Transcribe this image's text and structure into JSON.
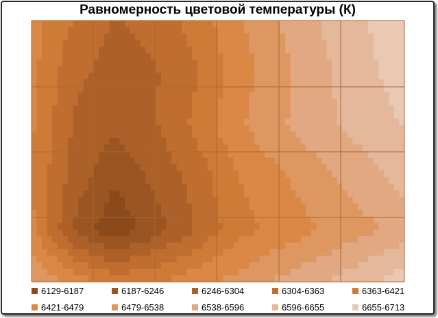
{
  "chart_data": {
    "type": "contour",
    "title": "Равномерность цветовой температуры (К)",
    "grid": true,
    "legend_position": "bottom",
    "bins": [
      {
        "label": "6129-6187",
        "low": 6129,
        "high": 6187,
        "color": "#8a4a1c"
      },
      {
        "label": "6187-6246",
        "low": 6187,
        "high": 6246,
        "color": "#9a5522"
      },
      {
        "label": "6246-6304",
        "low": 6246,
        "high": 6304,
        "color": "#ad6128"
      },
      {
        "label": "6304-6363",
        "low": 6304,
        "high": 6363,
        "color": "#bf6e30"
      },
      {
        "label": "6363-6421",
        "low": 6363,
        "high": 6421,
        "color": "#cf7b38"
      },
      {
        "label": "6421-6479",
        "low": 6421,
        "high": 6479,
        "color": "#db8745"
      },
      {
        "label": "6479-6538",
        "low": 6479,
        "high": 6538,
        "color": "#df9762"
      },
      {
        "label": "6538-6596",
        "low": 6538,
        "high": 6596,
        "color": "#e2a882"
      },
      {
        "label": "6596-6655",
        "low": 6596,
        "high": 6655,
        "color": "#e5b89c"
      },
      {
        "label": "6655-6713",
        "low": 6655,
        "high": 6713,
        "color": "#e9c8b4"
      }
    ],
    "z": [
      [
        6450,
        6360,
        6300,
        6320,
        6390,
        6470,
        6540,
        6600,
        6650,
        6690
      ],
      [
        6440,
        6320,
        6280,
        6300,
        6360,
        6450,
        6520,
        6580,
        6640,
        6680
      ],
      [
        6430,
        6300,
        6260,
        6300,
        6380,
        6470,
        6530,
        6580,
        6620,
        6660
      ],
      [
        6420,
        6280,
        6200,
        6260,
        6330,
        6420,
        6470,
        6520,
        6570,
        6620
      ],
      [
        6440,
        6240,
        6140,
        6220,
        6310,
        6400,
        6440,
        6480,
        6520,
        6560
      ],
      [
        6540,
        6460,
        6400,
        6420,
        6460,
        6500,
        6550,
        6590,
        6640,
        6690
      ]
    ]
  }
}
